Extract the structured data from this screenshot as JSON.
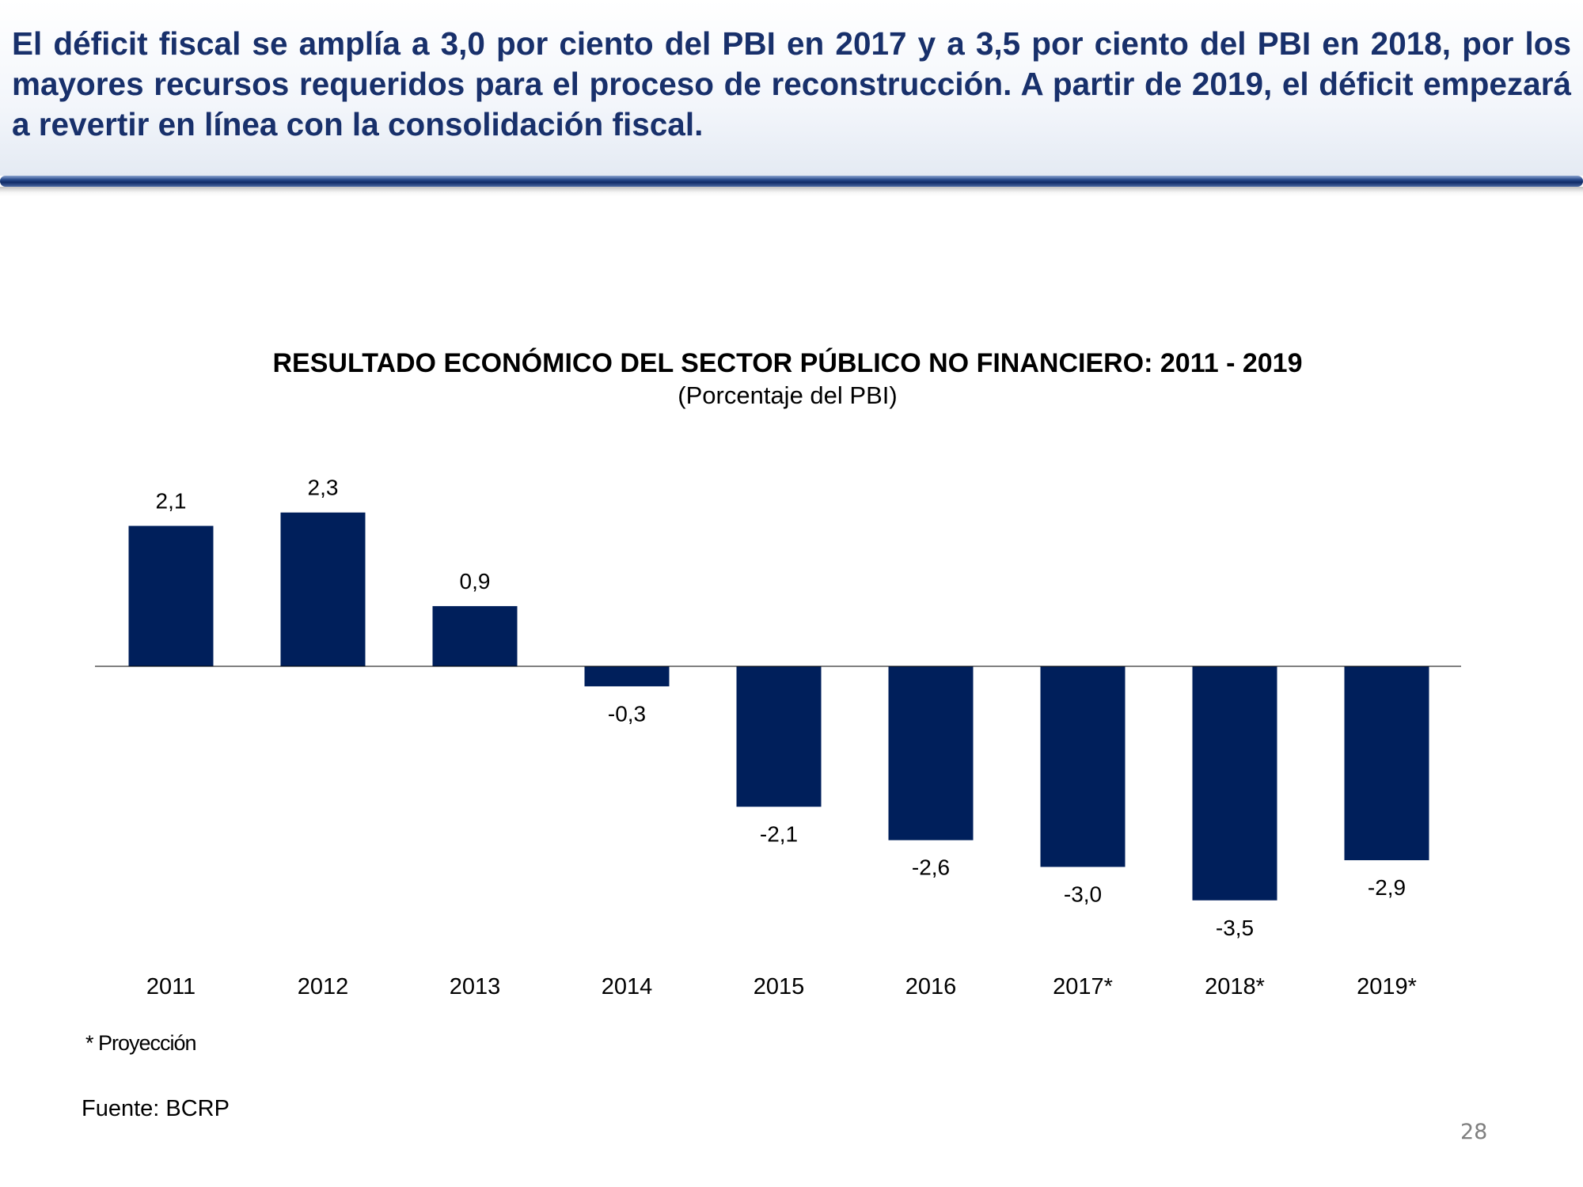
{
  "header": {
    "headline": "El déficit fiscal se amplía a 3,0 por ciento del PBI en 2017 y a 3,5 por ciento del PBI en 2018, por los mayores recursos requeridos para el proceso de reconstrucción. A partir de 2019, el déficit empezará a revertir en línea con la consolidación fiscal."
  },
  "colors": {
    "headline": "#18306b",
    "bar": "#001f5b"
  },
  "chart_data": {
    "type": "bar",
    "title": "RESULTADO ECONÓMICO DEL SECTOR PÚBLICO NO FINANCIERO:  2011 - 2019",
    "subtitle": "(Porcentaje del PBI)",
    "categories": [
      "2011",
      "2012",
      "2013",
      "2014",
      "2015",
      "2016",
      "2017*",
      "2018*",
      "2019*"
    ],
    "values": [
      2.1,
      2.3,
      0.9,
      -0.3,
      -2.1,
      -2.6,
      -3.0,
      -3.5,
      -2.9
    ],
    "data_labels": [
      "2,1",
      "2,3",
      "0,9",
      "-0,3",
      "-2,1",
      "-2,6",
      "-3,0",
      "-3,5",
      "-2,9"
    ],
    "xlabel": "",
    "ylabel": "",
    "ylim": [
      -3.5,
      2.3
    ],
    "grid": false,
    "legend": "none"
  },
  "footnote": "* Proyección",
  "source": "Fuente: BCRP",
  "page_number": "28"
}
